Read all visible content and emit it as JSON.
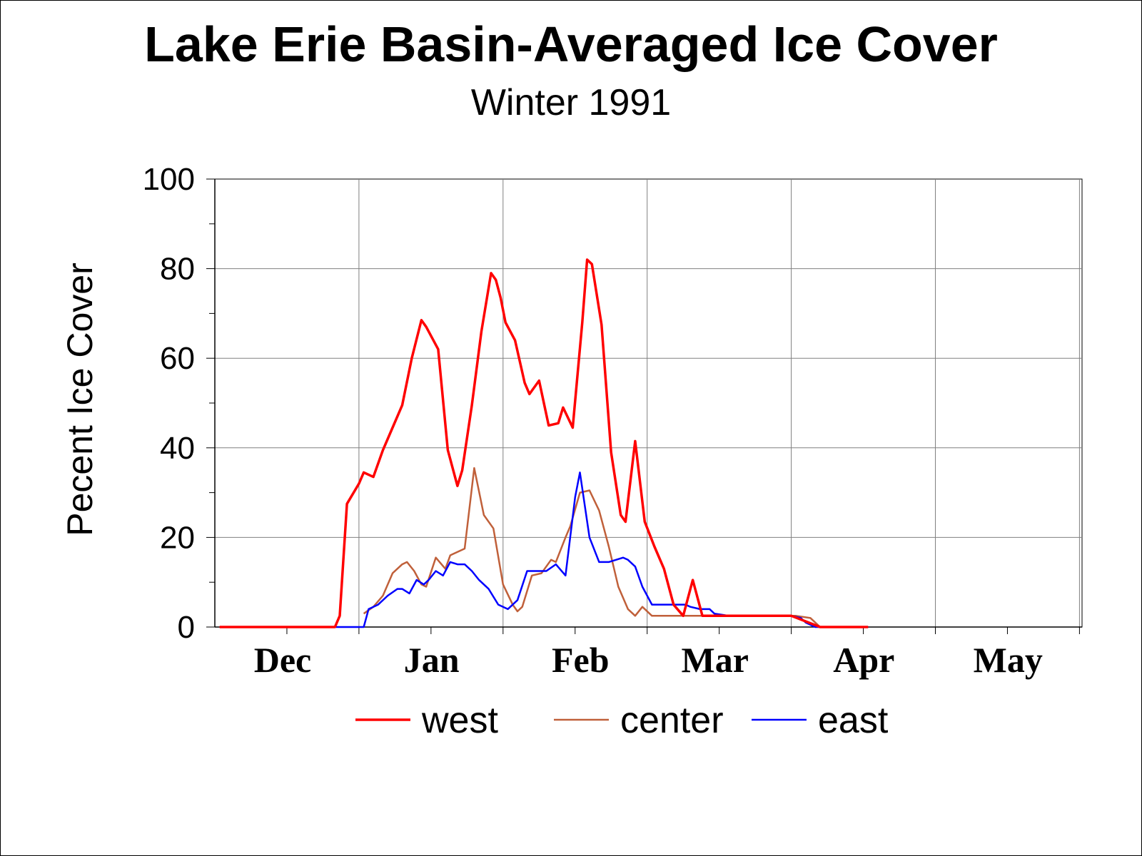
{
  "chart_data": {
    "type": "line",
    "title": "Lake Erie Basin-Averaged Ice Cover",
    "subtitle": "Winter 1991",
    "xlabel": "",
    "ylabel": "Pecent Ice Cover",
    "x_unit": "days after Dec 1",
    "xlim": [
      0,
      180
    ],
    "ylim": [
      0,
      100
    ],
    "y_ticks": [
      "0",
      "20",
      "40",
      "60",
      "80",
      "100"
    ],
    "x_ticks": [
      {
        "label": "Dec",
        "x": 0
      },
      {
        "label": "Jan",
        "x": 31
      },
      {
        "label": "Feb",
        "x": 62
      },
      {
        "label": "Mar",
        "x": 90
      },
      {
        "label": "Apr",
        "x": 121
      },
      {
        "label": "May",
        "x": 151
      }
    ],
    "grid": true,
    "legend_position": "bottom",
    "series": [
      {
        "name": "west",
        "color": "#ff0000",
        "width": 3.5,
        "points": [
          [
            1,
            0
          ],
          [
            25,
            0
          ],
          [
            26,
            2.5
          ],
          [
            27.5,
            27.5
          ],
          [
            30,
            32
          ],
          [
            31,
            34.5
          ],
          [
            33,
            33.5
          ],
          [
            35,
            39.5
          ],
          [
            37,
            44.5
          ],
          [
            39,
            49.5
          ],
          [
            41,
            60
          ],
          [
            43,
            68.5
          ],
          [
            44,
            67
          ],
          [
            45.5,
            64
          ],
          [
            46.5,
            62
          ],
          [
            48.5,
            39.5
          ],
          [
            50.5,
            31.5
          ],
          [
            51.5,
            35
          ],
          [
            53.5,
            49.5
          ],
          [
            55.5,
            66
          ],
          [
            57.5,
            79
          ],
          [
            58.5,
            77.5
          ],
          [
            59.5,
            73.5
          ],
          [
            60.5,
            68
          ],
          [
            62.5,
            64
          ],
          [
            64.5,
            54.5
          ],
          [
            65.5,
            52
          ],
          [
            67.5,
            55
          ],
          [
            69.5,
            45
          ],
          [
            71.5,
            45.5
          ],
          [
            72.5,
            49
          ],
          [
            74.5,
            44.5
          ],
          [
            76.5,
            68
          ],
          [
            77.5,
            82
          ],
          [
            78.5,
            81
          ],
          [
            80.5,
            67.5
          ],
          [
            82.5,
            39
          ],
          [
            84.5,
            25
          ],
          [
            85.5,
            23.5
          ],
          [
            87.5,
            41.5
          ],
          [
            89.5,
            23.5
          ],
          [
            91.5,
            18
          ],
          [
            93.5,
            13
          ],
          [
            95.5,
            5
          ],
          [
            97.5,
            2.5
          ],
          [
            99.5,
            10.5
          ],
          [
            101.5,
            2.5
          ],
          [
            120,
            2.5
          ],
          [
            126,
            0
          ],
          [
            136,
            0
          ]
        ]
      },
      {
        "name": "center",
        "color": "#c0603a",
        "width": 2.5,
        "points": [
          [
            31,
            3
          ],
          [
            33,
            4.5
          ],
          [
            35,
            7
          ],
          [
            37,
            12
          ],
          [
            39,
            14
          ],
          [
            40,
            14.5
          ],
          [
            41.5,
            12.5
          ],
          [
            43,
            9.5
          ],
          [
            44,
            9
          ],
          [
            46,
            15.5
          ],
          [
            48,
            13
          ],
          [
            49,
            16
          ],
          [
            51,
            17
          ],
          [
            52,
            17.5
          ],
          [
            54,
            35.5
          ],
          [
            56,
            25
          ],
          [
            58,
            22
          ],
          [
            60,
            9.5
          ],
          [
            62,
            5
          ],
          [
            63,
            3.5
          ],
          [
            64,
            4.5
          ],
          [
            66,
            11.5
          ],
          [
            68,
            12
          ],
          [
            70,
            15
          ],
          [
            71,
            14.5
          ],
          [
            73,
            20
          ],
          [
            74,
            22.5
          ],
          [
            76,
            30
          ],
          [
            78,
            30.5
          ],
          [
            80,
            26
          ],
          [
            82,
            18
          ],
          [
            84,
            9
          ],
          [
            86,
            4
          ],
          [
            87.5,
            2.5
          ],
          [
            89,
            4.5
          ],
          [
            91,
            2.5
          ],
          [
            121,
            2.5
          ],
          [
            124,
            2
          ],
          [
            126,
            0
          ],
          [
            136,
            0
          ]
        ]
      },
      {
        "name": "east",
        "color": "#0000ff",
        "width": 2.5,
        "points": [
          [
            25,
            0
          ],
          [
            31,
            0
          ],
          [
            32,
            4
          ],
          [
            34,
            5
          ],
          [
            36,
            7
          ],
          [
            38,
            8.5
          ],
          [
            39,
            8.5
          ],
          [
            40.5,
            7.5
          ],
          [
            42,
            10.5
          ],
          [
            43.5,
            9.5
          ],
          [
            44.5,
            10.5
          ],
          [
            46,
            12.5
          ],
          [
            47.5,
            11.5
          ],
          [
            49,
            14.5
          ],
          [
            50.5,
            14
          ],
          [
            52,
            14
          ],
          [
            53.5,
            12.5
          ],
          [
            55,
            10.5
          ],
          [
            57,
            8.5
          ],
          [
            59,
            5
          ],
          [
            61,
            4
          ],
          [
            63,
            6
          ],
          [
            65,
            12.5
          ],
          [
            67,
            12.5
          ],
          [
            69,
            12.5
          ],
          [
            71,
            14
          ],
          [
            73,
            11.5
          ],
          [
            75,
            29
          ],
          [
            76,
            34.5
          ],
          [
            78,
            20
          ],
          [
            80,
            14.5
          ],
          [
            82,
            14.5
          ],
          [
            83.5,
            15
          ],
          [
            85,
            15.5
          ],
          [
            86,
            15
          ],
          [
            87.5,
            13.5
          ],
          [
            89,
            9
          ],
          [
            91,
            5
          ],
          [
            93,
            5
          ],
          [
            95,
            5
          ],
          [
            97,
            5
          ],
          [
            98,
            5
          ],
          [
            99,
            4.5
          ],
          [
            101,
            4
          ],
          [
            103,
            4
          ],
          [
            104,
            3
          ],
          [
            107,
            2.5
          ],
          [
            109,
            2.5
          ],
          [
            120,
            2.5
          ],
          [
            122,
            2
          ],
          [
            123,
            1
          ],
          [
            125,
            0
          ],
          [
            127,
            0
          ],
          [
            136,
            0
          ]
        ]
      }
    ]
  }
}
